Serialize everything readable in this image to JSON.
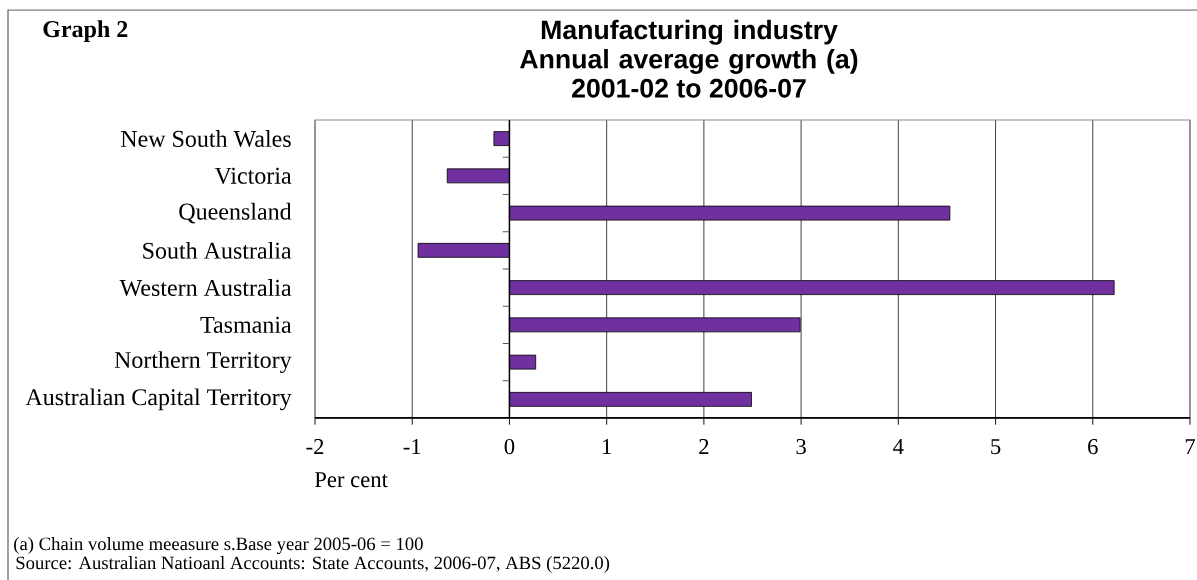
{
  "chart_data": {
    "type": "bar",
    "orientation": "horizontal",
    "title": "Manufacturing industry Annual average growth (a)",
    "subtitle": "2001-02 to 2006-07",
    "xlabel": "Per cent",
    "annotations": [
      "Graph 2",
      "(a) Chain volume meeasure s.Base year 2005-06 = 100",
      "Source: Australian Natioanl Accounts: State Accounts, 2006-07, ABS (5220.0)"
    ],
    "categories": [
      "New South Wales",
      "Victoria",
      "Queensland",
      "South Australia",
      "Western Australia",
      "Tasmania",
      "Northern Territory",
      "Australian Capital Territory"
    ],
    "values": [
      -0.16,
      -0.64,
      4.53,
      -0.94,
      6.22,
      2.99,
      0.27,
      2.49
    ],
    "color": "#7030a0",
    "xlim": [
      -2,
      7
    ],
    "xticks": [
      -2,
      -1,
      0,
      1,
      2,
      3,
      4,
      5,
      6,
      7
    ],
    "grid": "x"
  }
}
